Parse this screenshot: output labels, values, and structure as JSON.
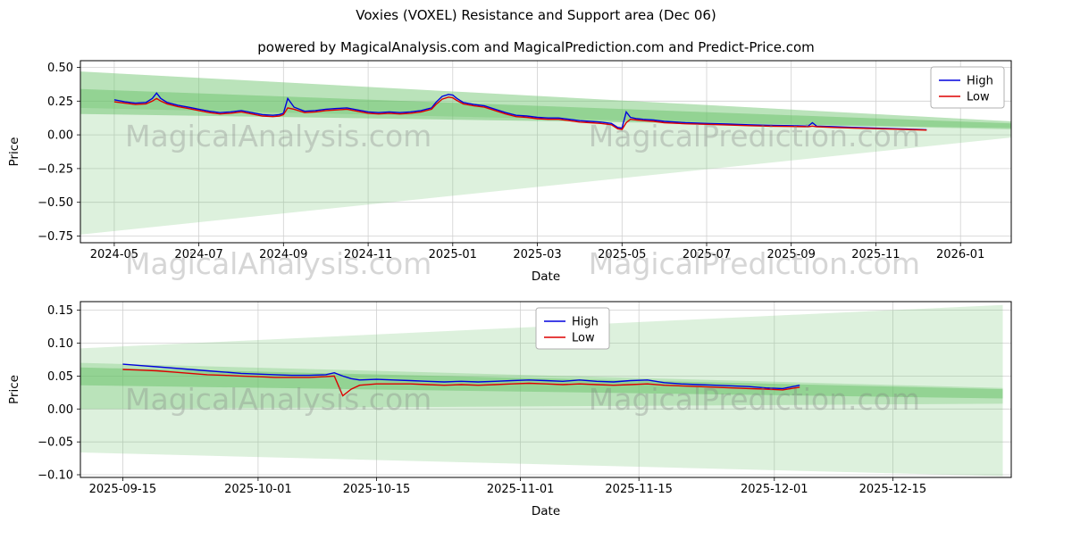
{
  "title": "Voxies (VOXEL) Resistance and Support area (Dec 06)",
  "subtitle": "powered by MagicalAnalysis.com and MagicalPrediction.com and Predict-Price.com",
  "watermarks": {
    "left": "MagicalAnalysis.com",
    "right": "MagicalPrediction.com"
  },
  "colors": {
    "high": "#0000dd",
    "low": "#dd0000",
    "grid": "#d0d0d0",
    "area_light": "rgba(120,200,120,0.25)",
    "area_medium": "rgba(120,200,120,0.35)",
    "area_dark": "rgba(100,190,100,0.45)"
  },
  "chart_data": [
    {
      "type": "line",
      "xlabel": "Date",
      "ylabel": "Price",
      "xlim": [
        -0.8,
        21.2
      ],
      "ylim": [
        -0.8,
        0.55
      ],
      "grid": true,
      "legend": {
        "position": "top-right",
        "entries": [
          "High",
          "Low"
        ]
      },
      "xticks": [
        {
          "v": 0,
          "label": "2024-05"
        },
        {
          "v": 2,
          "label": "2024-07"
        },
        {
          "v": 4,
          "label": "2024-09"
        },
        {
          "v": 6,
          "label": "2024-11"
        },
        {
          "v": 8,
          "label": "2025-01"
        },
        {
          "v": 10,
          "label": "2025-03"
        },
        {
          "v": 12,
          "label": "2025-05"
        },
        {
          "v": 14,
          "label": "2025-07"
        },
        {
          "v": 16,
          "label": "2025-09"
        },
        {
          "v": 18,
          "label": "2025-11"
        },
        {
          "v": 20,
          "label": "2026-01"
        }
      ],
      "yticks": [
        {
          "v": 0.5,
          "label": "0.50"
        },
        {
          "v": 0.25,
          "label": "0.25"
        },
        {
          "v": 0,
          "label": "0.00"
        },
        {
          "v": -0.25,
          "label": "−0.25"
        },
        {
          "v": -0.5,
          "label": "−0.50"
        },
        {
          "v": -0.75,
          "label": "−0.75"
        }
      ],
      "areas": [
        {
          "name": "support-fan-light",
          "fill": "rgba(120,200,120,0.25)",
          "points": [
            [
              -0.8,
              0.47
            ],
            [
              21.2,
              0.1
            ],
            [
              21.2,
              -0.02
            ],
            [
              -0.8,
              -0.74
            ]
          ]
        },
        {
          "name": "resistance-band-medium",
          "fill": "rgba(120,200,120,0.35)",
          "points": [
            [
              -0.8,
              0.47
            ],
            [
              21.2,
              0.1
            ],
            [
              21.2,
              0.04
            ],
            [
              -0.8,
              0.2
            ]
          ]
        },
        {
          "name": "resistance-band-dark",
          "fill": "rgba(100,190,100,0.45)",
          "points": [
            [
              -0.8,
              0.34
            ],
            [
              21.2,
              0.085
            ],
            [
              21.2,
              0.05
            ],
            [
              -0.8,
              0.155
            ]
          ]
        }
      ],
      "series": [
        {
          "name": "High",
          "color": "#0000dd",
          "x": [
            0,
            0.25,
            0.5,
            0.75,
            0.9,
            1,
            1.1,
            1.25,
            1.5,
            1.75,
            2,
            2.25,
            2.5,
            2.75,
            3,
            3.25,
            3.5,
            3.75,
            3.9,
            4,
            4.1,
            4.25,
            4.5,
            4.75,
            5,
            5.25,
            5.5,
            5.75,
            6,
            6.25,
            6.5,
            6.75,
            7,
            7.25,
            7.5,
            7.6,
            7.75,
            7.9,
            8,
            8.1,
            8.25,
            8.5,
            8.75,
            9,
            9.25,
            9.5,
            9.75,
            10,
            10.25,
            10.5,
            10.75,
            11,
            11.25,
            11.5,
            11.75,
            11.9,
            12,
            12.1,
            12.2,
            12.35,
            12.5,
            12.75,
            13,
            13.5,
            14,
            14.5,
            15,
            15.5,
            16,
            16.4,
            16.5,
            16.6,
            17,
            17.5,
            18,
            18.5,
            19,
            19.2
          ],
          "y": [
            0.26,
            0.245,
            0.235,
            0.24,
            0.27,
            0.31,
            0.27,
            0.24,
            0.22,
            0.205,
            0.19,
            0.175,
            0.165,
            0.17,
            0.18,
            0.165,
            0.15,
            0.145,
            0.15,
            0.16,
            0.27,
            0.205,
            0.175,
            0.18,
            0.19,
            0.195,
            0.2,
            0.185,
            0.17,
            0.165,
            0.17,
            0.165,
            0.17,
            0.18,
            0.2,
            0.24,
            0.285,
            0.3,
            0.295,
            0.27,
            0.24,
            0.225,
            0.215,
            0.19,
            0.165,
            0.145,
            0.14,
            0.13,
            0.125,
            0.125,
            0.115,
            0.105,
            0.1,
            0.095,
            0.085,
            0.055,
            0.05,
            0.17,
            0.13,
            0.12,
            0.115,
            0.11,
            0.1,
            0.09,
            0.085,
            0.08,
            0.075,
            0.07,
            0.068,
            0.065,
            0.09,
            0.065,
            0.06,
            0.055,
            0.05,
            0.045,
            0.04,
            0.038
          ]
        },
        {
          "name": "Low",
          "color": "#dd0000",
          "x": [
            0,
            0.25,
            0.5,
            0.75,
            0.9,
            1,
            1.1,
            1.25,
            1.5,
            1.75,
            2,
            2.25,
            2.5,
            2.75,
            3,
            3.25,
            3.5,
            3.75,
            3.9,
            4,
            4.1,
            4.25,
            4.5,
            4.75,
            5,
            5.25,
            5.5,
            5.75,
            6,
            6.25,
            6.5,
            6.75,
            7,
            7.25,
            7.5,
            7.6,
            7.75,
            7.9,
            8,
            8.1,
            8.25,
            8.5,
            8.75,
            9,
            9.25,
            9.5,
            9.75,
            10,
            10.25,
            10.5,
            10.75,
            11,
            11.25,
            11.5,
            11.75,
            11.9,
            12,
            12.1,
            12.2,
            12.35,
            12.5,
            12.75,
            13,
            13.5,
            14,
            14.5,
            15,
            15.5,
            16,
            16.4,
            16.5,
            16.6,
            17,
            17.5,
            18,
            18.5,
            19,
            19.2
          ],
          "y": [
            0.245,
            0.235,
            0.225,
            0.23,
            0.25,
            0.27,
            0.25,
            0.23,
            0.21,
            0.195,
            0.18,
            0.165,
            0.155,
            0.16,
            0.17,
            0.155,
            0.14,
            0.135,
            0.14,
            0.15,
            0.2,
            0.19,
            0.165,
            0.17,
            0.18,
            0.185,
            0.19,
            0.175,
            0.16,
            0.155,
            0.16,
            0.155,
            0.16,
            0.17,
            0.19,
            0.225,
            0.265,
            0.28,
            0.275,
            0.255,
            0.23,
            0.215,
            0.205,
            0.18,
            0.155,
            0.135,
            0.13,
            0.12,
            0.115,
            0.115,
            0.105,
            0.095,
            0.09,
            0.085,
            0.075,
            0.045,
            0.04,
            0.09,
            0.115,
            0.11,
            0.105,
            0.1,
            0.09,
            0.082,
            0.078,
            0.073,
            0.068,
            0.064,
            0.062,
            0.06,
            0.065,
            0.06,
            0.055,
            0.05,
            0.046,
            0.042,
            0.037,
            0.035
          ]
        }
      ]
    },
    {
      "type": "line",
      "xlabel": "Date",
      "ylabel": "Price",
      "xlim": [
        -5,
        105
      ],
      "ylim": [
        -0.104,
        0.163
      ],
      "grid": true,
      "legend": {
        "position": "top-center",
        "entries": [
          "High",
          "Low"
        ]
      },
      "xticks": [
        {
          "v": 0,
          "label": "2025-09-15"
        },
        {
          "v": 16,
          "label": "2025-10-01"
        },
        {
          "v": 30,
          "label": "2025-10-15"
        },
        {
          "v": 47,
          "label": "2025-11-01"
        },
        {
          "v": 61,
          "label": "2025-11-15"
        },
        {
          "v": 77,
          "label": "2025-12-01"
        },
        {
          "v": 91,
          "label": "2025-12-15"
        }
      ],
      "yticks": [
        {
          "v": 0.15,
          "label": "0.15"
        },
        {
          "v": 0.1,
          "label": "0.10"
        },
        {
          "v": 0.05,
          "label": "0.05"
        },
        {
          "v": 0,
          "label": "0.00"
        },
        {
          "v": -0.05,
          "label": "−0.05"
        },
        {
          "v": -0.1,
          "label": "−0.10"
        }
      ],
      "areas": [
        {
          "name": "support-fan-light",
          "fill": "rgba(120,200,120,0.25)",
          "points": [
            [
              -5,
              0.092
            ],
            [
              104,
              0.158
            ],
            [
              104,
              -0.102
            ],
            [
              -5,
              -0.066
            ]
          ]
        },
        {
          "name": "resistance-band-medium",
          "fill": "rgba(120,200,120,0.35)",
          "points": [
            [
              -5,
              0.07
            ],
            [
              104,
              0.032
            ],
            [
              104,
              0.008
            ],
            [
              -5,
              0.0
            ]
          ]
        },
        {
          "name": "resistance-band-dark",
          "fill": "rgba(100,190,100,0.45)",
          "points": [
            [
              -5,
              0.063
            ],
            [
              104,
              0.03
            ],
            [
              104,
              0.016
            ],
            [
              -5,
              0.036
            ]
          ]
        }
      ],
      "series": [
        {
          "name": "High",
          "color": "#0000dd",
          "x": [
            0,
            2,
            4,
            6,
            8,
            10,
            12,
            14,
            16,
            18,
            20,
            22,
            24,
            25,
            26,
            27,
            28,
            30,
            32,
            34,
            36,
            38,
            40,
            42,
            44,
            46,
            48,
            50,
            52,
            54,
            56,
            58,
            60,
            62,
            64,
            66,
            68,
            70,
            72,
            74,
            76,
            78,
            80
          ],
          "y": [
            0.068,
            0.066,
            0.064,
            0.062,
            0.06,
            0.058,
            0.056,
            0.054,
            0.053,
            0.052,
            0.051,
            0.051,
            0.052,
            0.055,
            0.05,
            0.046,
            0.044,
            0.045,
            0.044,
            0.043,
            0.042,
            0.041,
            0.042,
            0.041,
            0.042,
            0.043,
            0.044,
            0.043,
            0.042,
            0.044,
            0.042,
            0.041,
            0.043,
            0.044,
            0.04,
            0.038,
            0.037,
            0.036,
            0.035,
            0.034,
            0.032,
            0.031,
            0.036
          ]
        },
        {
          "name": "Low",
          "color": "#dd0000",
          "x": [
            0,
            2,
            4,
            6,
            8,
            10,
            12,
            14,
            16,
            18,
            20,
            22,
            24,
            25,
            26,
            27,
            28,
            30,
            32,
            34,
            36,
            38,
            40,
            42,
            44,
            46,
            48,
            50,
            52,
            54,
            56,
            58,
            60,
            62,
            64,
            66,
            68,
            70,
            72,
            74,
            76,
            78,
            80
          ],
          "y": [
            0.06,
            0.059,
            0.058,
            0.056,
            0.054,
            0.052,
            0.051,
            0.05,
            0.049,
            0.048,
            0.048,
            0.048,
            0.049,
            0.05,
            0.02,
            0.03,
            0.036,
            0.038,
            0.038,
            0.038,
            0.037,
            0.036,
            0.037,
            0.036,
            0.037,
            0.038,
            0.039,
            0.038,
            0.037,
            0.038,
            0.037,
            0.036,
            0.037,
            0.038,
            0.036,
            0.035,
            0.034,
            0.033,
            0.032,
            0.031,
            0.03,
            0.029,
            0.033
          ]
        }
      ]
    }
  ]
}
